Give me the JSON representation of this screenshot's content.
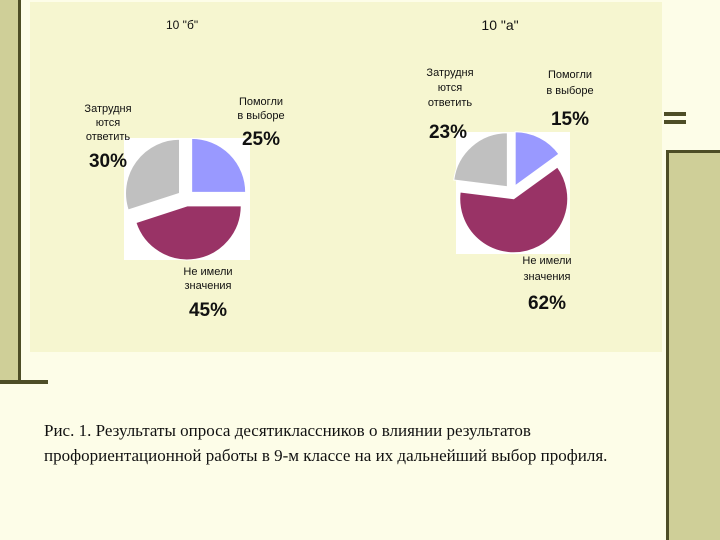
{
  "chart_data": [
    {
      "type": "pie",
      "title": "10 \"б\"",
      "exploded": true,
      "slices": [
        {
          "label": "Помогли в выборе",
          "pct_label": "25%",
          "value": 25,
          "color": "#9999ff"
        },
        {
          "label": "Не имели значения",
          "pct_label": "45%",
          "value": 45,
          "color": "#993366"
        },
        {
          "label": "Затрудня ются ответить",
          "pct_label": "30%",
          "value": 30,
          "color": "#c0c0c0"
        }
      ]
    },
    {
      "type": "pie",
      "title": "10 \"а\"",
      "exploded": true,
      "slices": [
        {
          "label": "Помогли в выборе",
          "pct_label": "15%",
          "value": 15,
          "color": "#9999ff"
        },
        {
          "label": "Не имели значения",
          "pct_label": "62%",
          "value": 62,
          "color": "#993366"
        },
        {
          "label": "Затрудня ются ответить",
          "pct_label": "23%",
          "value": 23,
          "color": "#c0c0c0"
        }
      ]
    }
  ],
  "labels": {
    "b_title": "10 \"б\"",
    "a_title": "10 \"а\"",
    "b_help_1": "Помогли",
    "b_help_2": "в выборе",
    "b_help_pct": "25%",
    "b_hard_1": "Затрудня",
    "b_hard_2": "ются",
    "b_hard_3": "ответить",
    "b_hard_pct": "30%",
    "b_none_1": "Не имели",
    "b_none_2": "значения",
    "b_none_pct": "45%",
    "a_hard_1": "Затрудня",
    "a_hard_2": "ются",
    "a_hard_3": "ответить",
    "a_hard_pct": "23%",
    "a_help_1": "Помогли",
    "a_help_2": "в выборе",
    "a_help_pct": "15%",
    "a_none_1": "Не имели",
    "a_none_2": "значения",
    "a_none_pct": "62%"
  },
  "caption": "Рис. 1. Результаты опроса десятиклассников о влиянии результатов профориентационной работы в 9-м классе на их дальнейший выбор профиля."
}
